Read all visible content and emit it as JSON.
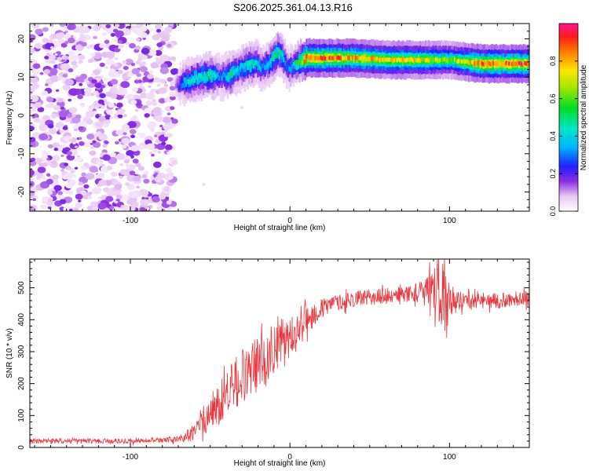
{
  "figure_title": "S206.2025.361.04.13.R16",
  "chart_data": [
    {
      "type": "heatmap",
      "title": "S206.2025.361.04.13.R16",
      "xlabel": "Height of straight line (km)",
      "ylabel": "Frequency (Hz)",
      "xlim": [
        -163,
        150
      ],
      "ylim": [
        -25,
        24
      ],
      "xticks": [
        -100,
        0,
        100
      ],
      "yticks": [
        -20,
        -10,
        0,
        10,
        20
      ],
      "colorbar": {
        "label": "Normalized spectral amplitude",
        "range": [
          0,
          1
        ],
        "ticks": [
          0.0,
          0.2,
          0.4,
          0.6,
          0.8
        ],
        "tick_labels": [
          "0.0",
          "0.2",
          "0.4",
          "0.6",
          "0.8"
        ],
        "colormap": "rainbow (white-violet-blue-cyan-green-yellow-red-magenta)"
      },
      "noise_region_x": [
        -163,
        -72
      ],
      "ridge": {
        "description": "Dominant frequency track vs height",
        "x": [
          -72,
          -65,
          -58,
          -50,
          -44,
          -38,
          -32,
          -27,
          -22,
          -18,
          -14,
          -10,
          -8,
          -5,
          -2,
          1,
          5,
          10,
          20,
          40,
          60,
          80,
          100,
          120,
          150
        ],
        "y": [
          7.5,
          9,
          10,
          10.5,
          10,
          10.5,
          12,
          13,
          13.5,
          12.5,
          13.5,
          15.5,
          16.5,
          15,
          12.5,
          12.5,
          14,
          15,
          15,
          15,
          14.5,
          14.5,
          14.5,
          13.5,
          13.5
        ],
        "peak_amplitude": [
          0.15,
          0.45,
          0.45,
          0.55,
          0.3,
          0.5,
          0.4,
          0.5,
          0.45,
          0.35,
          0.4,
          0.55,
          0.5,
          0.45,
          0.3,
          0.4,
          0.6,
          0.95,
          0.95,
          0.85,
          0.8,
          0.8,
          0.65,
          0.95,
          0.95
        ]
      }
    },
    {
      "type": "line",
      "xlabel": "Height of straight line (km)",
      "ylabel": "SNR (10 * v/v)",
      "xlim": [
        -163,
        150
      ],
      "ylim": [
        0,
        590
      ],
      "xticks": [
        -100,
        0,
        100
      ],
      "yticks": [
        0,
        100,
        200,
        300,
        400,
        500
      ],
      "color": "#e8383d",
      "series": [
        {
          "name": "SNR",
          "x": [
            -163,
            -140,
            -120,
            -100,
            -80,
            -70,
            -62,
            -56,
            -50,
            -44,
            -38,
            -32,
            -26,
            -20,
            -14,
            -8,
            -2,
            4,
            10,
            16,
            22,
            30,
            40,
            50,
            60,
            70,
            80,
            86,
            90,
            94,
            96,
            100,
            106,
            115,
            125,
            135,
            150
          ],
          "values": [
            20,
            20,
            20,
            20,
            22,
            25,
            40,
            80,
            105,
            140,
            180,
            210,
            240,
            260,
            300,
            320,
            340,
            360,
            400,
            420,
            440,
            455,
            465,
            470,
            475,
            480,
            485,
            488,
            480,
            490,
            470,
            465,
            460,
            460,
            458,
            462,
            470
          ],
          "noise_amplitude": [
            8,
            8,
            8,
            8,
            8,
            10,
            25,
            40,
            60,
            70,
            80,
            90,
            90,
            90,
            90,
            80,
            70,
            60,
            50,
            40,
            30,
            25,
            25,
            25,
            25,
            25,
            30,
            50,
            110,
            130,
            120,
            60,
            30,
            25,
            25,
            25,
            25
          ]
        }
      ]
    }
  ]
}
